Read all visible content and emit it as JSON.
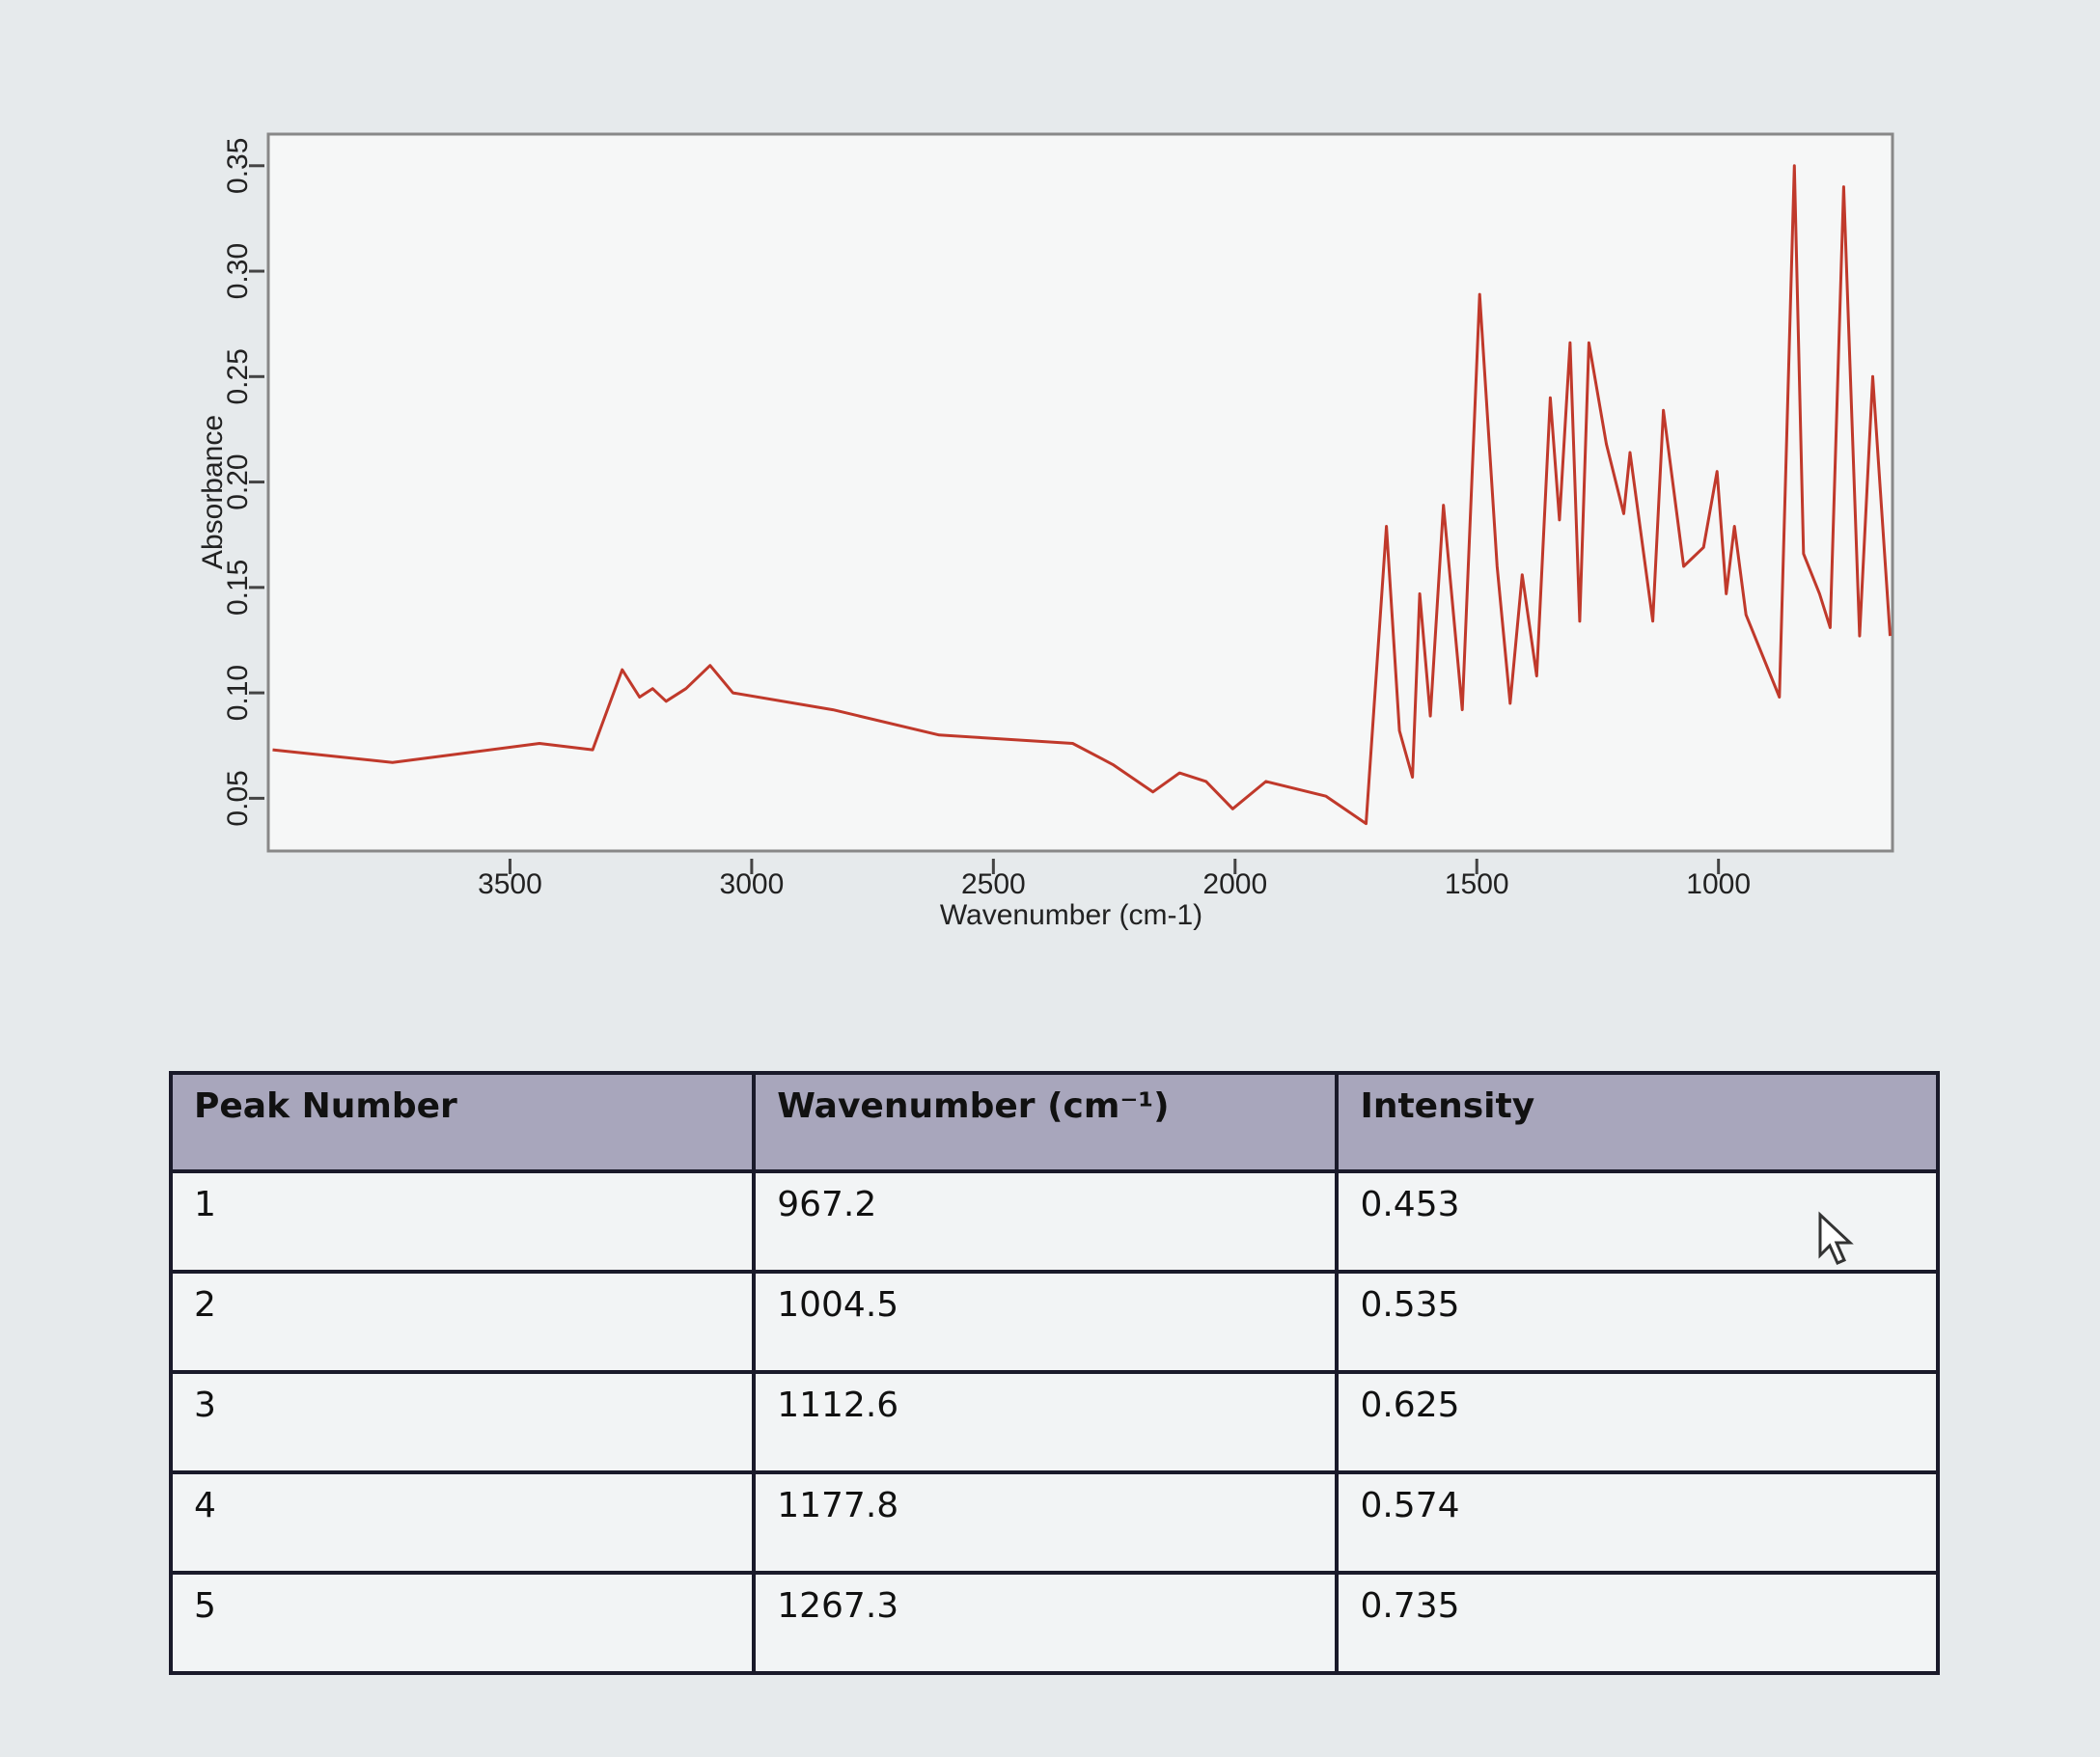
{
  "chart_data": {
    "type": "line",
    "x_label": "Wavenumber (cm-1)",
    "y_label": "Absorbance",
    "xlim": [
      4000,
      640
    ],
    "xticks": [
      3500,
      3000,
      2500,
      2000,
      1500,
      1000
    ],
    "ylim": [
      0.025,
      0.365
    ],
    "yticks": [
      {
        "value": 0.05,
        "label": "0.05"
      },
      {
        "value": 0.1,
        "label": "0.10"
      },
      {
        "value": 0.15,
        "label": "0.15"
      },
      {
        "value": 0.2,
        "label": "0.20"
      },
      {
        "value": 0.25,
        "label": "0.25"
      },
      {
        "value": 0.3,
        "label": "0.30"
      },
      {
        "value": 0.35,
        "label": "0.35"
      }
    ],
    "series": [
      {
        "color": "#c0392b",
        "x": [
          3991,
          3743,
          3439,
          3329,
          3268,
          3232,
          3205,
          3177,
          3136,
          3086,
          3039,
          2832,
          2612,
          2336,
          2253,
          2170,
          2115,
          2060,
          2005,
          1936,
          1812,
          1729,
          1687,
          1660,
          1633,
          1618,
          1596,
          1569,
          1530,
          1494,
          1458,
          1431,
          1406,
          1376,
          1348,
          1329,
          1307,
          1287,
          1268,
          1232,
          1196,
          1183,
          1136,
          1114,
          1072,
          1031,
          1003,
          984,
          967,
          943,
          874,
          843,
          824,
          791,
          769,
          741,
          708,
          681,
          645
        ],
        "values": [
          0.073,
          0.067,
          0.076,
          0.073,
          0.111,
          0.098,
          0.102,
          0.096,
          0.102,
          0.113,
          0.1,
          0.092,
          0.08,
          0.076,
          0.066,
          0.053,
          0.062,
          0.058,
          0.045,
          0.058,
          0.051,
          0.038,
          0.179,
          0.082,
          0.06,
          0.147,
          0.089,
          0.189,
          0.092,
          0.289,
          0.16,
          0.095,
          0.156,
          0.108,
          0.24,
          0.182,
          0.266,
          0.134,
          0.266,
          0.218,
          0.185,
          0.214,
          0.134,
          0.234,
          0.16,
          0.169,
          0.205,
          0.147,
          0.179,
          0.137,
          0.098,
          0.35,
          0.166,
          0.147,
          0.131,
          0.34,
          0.127,
          0.25,
          0.127
        ]
      }
    ]
  },
  "table": {
    "header": [
      "Peak Number",
      "Wavenumber (cm⁻¹)",
      "Intensity"
    ],
    "rows": [
      [
        "1",
        "967.2",
        "0.453"
      ],
      [
        "2",
        "1004.5",
        "0.535"
      ],
      [
        "3",
        "1112.6",
        "0.625"
      ],
      [
        "4",
        "1177.8",
        "0.574"
      ],
      [
        "5",
        "1267.3",
        "0.735"
      ]
    ]
  }
}
